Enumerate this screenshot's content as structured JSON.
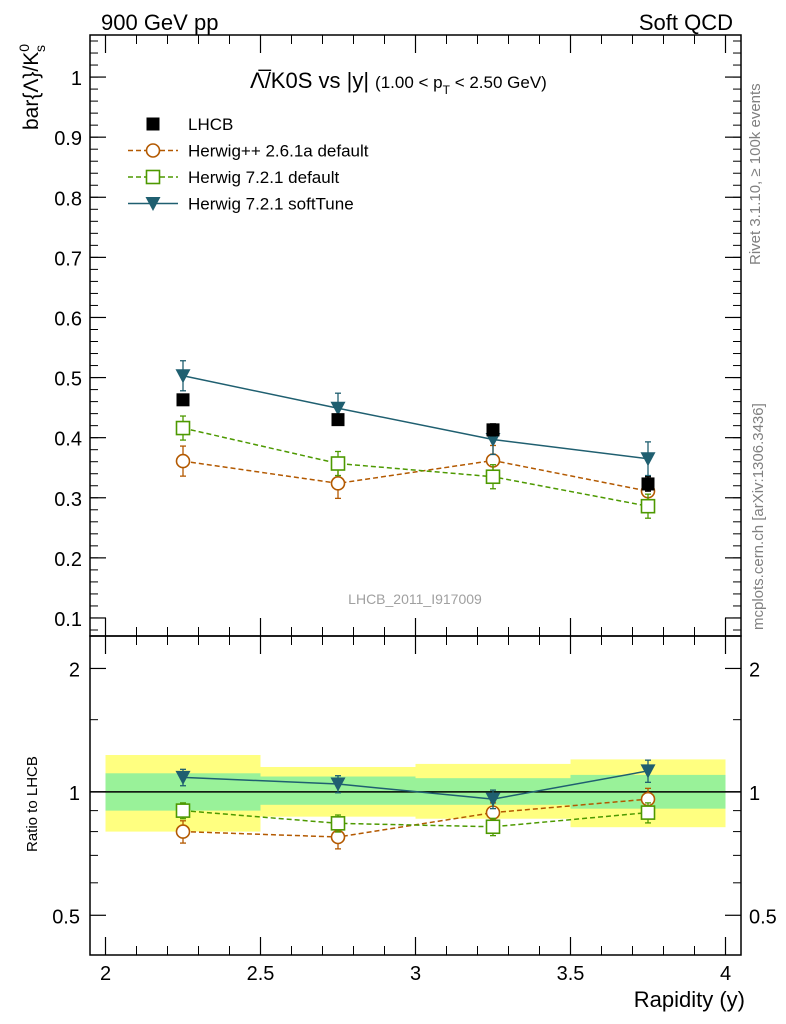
{
  "header": {
    "left": "900 GeV pp",
    "right": "Soft QCD"
  },
  "side_text": {
    "rivet": "Rivet 3.1.10, ≥ 100k events",
    "mcplots": "mcplots.cern.ch [arXiv:1306.3436]"
  },
  "watermark": "LHCB_2011_I917009",
  "chart_data": [
    {
      "type": "line",
      "title_main": "Λ̅/K0S vs |y|",
      "title_sub": "(1.00 < p",
      "title_sub_subscript": "T",
      "title_sub_end": " < 2.50 GeV)",
      "ylabel": "bar{Λ}/K",
      "ylabel_sup": "0",
      "ylabel_sub": "s",
      "xlim": [
        1.95,
        4.05
      ],
      "ylim": [
        0.07,
        1.07
      ],
      "yticks": [
        0.1,
        0.2,
        0.3,
        0.4,
        0.5,
        0.6,
        0.7,
        0.8,
        0.9,
        1
      ],
      "ytick_labels": [
        "0.1",
        "0.2",
        "0.3",
        "0.4",
        "0.5",
        "0.6",
        "0.7",
        "0.8",
        "0.9",
        "1"
      ],
      "legend_position": "top-left",
      "series": [
        {
          "name": "LHCB",
          "marker": "square-filled",
          "color": "#000000",
          "line": "none",
          "x": [
            2.25,
            2.75,
            3.25,
            3.75
          ],
          "y": [
            0.463,
            0.43,
            0.413,
            0.323
          ],
          "err": [
            0.006,
            0.008,
            0.01,
            0.012
          ]
        },
        {
          "name": "Herwig++ 2.6.1a default",
          "marker": "circle-open",
          "color": "#b35900",
          "line": "dashed",
          "x": [
            2.25,
            2.75,
            3.25,
            3.75
          ],
          "y": [
            0.361,
            0.324,
            0.362,
            0.311
          ],
          "err": [
            0.025,
            0.025,
            0.025,
            0.025
          ]
        },
        {
          "name": "Herwig 7.2.1 default",
          "marker": "square-open",
          "color": "#4d9900",
          "line": "dashed",
          "x": [
            2.25,
            2.75,
            3.25,
            3.75
          ],
          "y": [
            0.416,
            0.357,
            0.335,
            0.286
          ],
          "err": [
            0.02,
            0.02,
            0.02,
            0.02
          ]
        },
        {
          "name": "Herwig 7.2.1 softTune",
          "marker": "triangle-down-filled",
          "color": "#1f5f70",
          "line": "solid",
          "x": [
            2.25,
            2.75,
            3.25,
            3.75
          ],
          "y": [
            0.503,
            0.449,
            0.397,
            0.365
          ],
          "err": [
            0.025,
            0.025,
            0.025,
            0.028
          ]
        }
      ]
    },
    {
      "type": "line",
      "ylabel": "Ratio to LHCB",
      "xlabel": "Rapidity (y)",
      "xlim": [
        1.95,
        4.05
      ],
      "ylim_log": [
        0.4,
        2.4
      ],
      "yscale": "log",
      "yticks": [
        0.5,
        1,
        2
      ],
      "ytick_labels": [
        "0.5",
        "1",
        "2"
      ],
      "xticks": [
        2,
        2.5,
        3,
        3.5,
        4
      ],
      "xtick_labels": [
        "2",
        "2.5",
        "3",
        "3.5",
        "4"
      ],
      "bands": {
        "x_edges": [
          2,
          2.5,
          3,
          3.5,
          4
        ],
        "inner_lo": [
          0.9,
          0.93,
          0.93,
          0.91
        ],
        "inner_hi": [
          1.11,
          1.09,
          1.08,
          1.1
        ],
        "outer_lo": [
          0.8,
          0.87,
          0.86,
          0.82
        ],
        "outer_hi": [
          1.23,
          1.15,
          1.17,
          1.2
        ],
        "inner_color": "#99f299",
        "outer_color": "#ffff80"
      },
      "series": [
        {
          "name": "Herwig++ 2.6.1a default",
          "color": "#b35900",
          "marker": "circle-open",
          "line": "dashed",
          "x": [
            2.25,
            2.75,
            3.25,
            3.75
          ],
          "y": [
            0.8,
            0.776,
            0.89,
            0.96
          ],
          "err": [
            0.05,
            0.05,
            0.05,
            0.06
          ]
        },
        {
          "name": "Herwig 7.2.1 default",
          "color": "#4d9900",
          "marker": "square-open",
          "line": "dashed",
          "x": [
            2.25,
            2.75,
            3.25,
            3.75
          ],
          "y": [
            0.9,
            0.838,
            0.822,
            0.89
          ],
          "err": [
            0.04,
            0.04,
            0.04,
            0.05
          ]
        },
        {
          "name": "Herwig 7.2.1 softTune",
          "color": "#1f5f70",
          "marker": "triangle-down-filled",
          "line": "solid",
          "x": [
            2.25,
            2.75,
            3.25,
            3.75
          ],
          "y": [
            1.085,
            1.045,
            0.96,
            1.125
          ],
          "err": [
            0.05,
            0.05,
            0.05,
            0.07
          ]
        }
      ]
    }
  ]
}
